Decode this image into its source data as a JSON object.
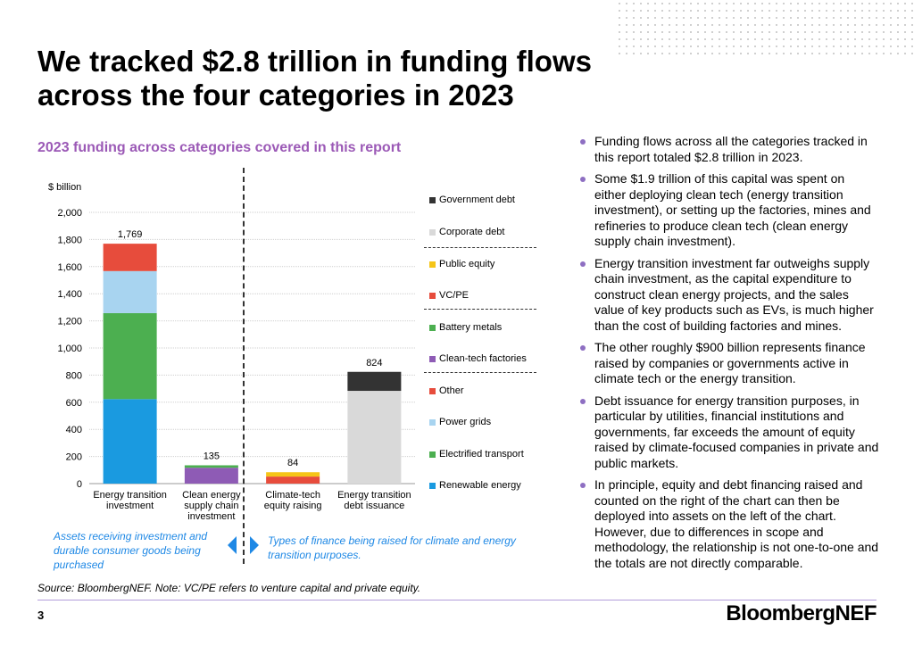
{
  "title_lines": [
    "We tracked $2.8 trillion in funding flows",
    "across the four categories in 2023"
  ],
  "colors": {
    "accent_purple": "#9b59b6",
    "note_blue": "#1e88e5",
    "government_debt": "#333333",
    "corporate_debt": "#d9d9d9",
    "public_equity": "#f5c518",
    "vc_pe": "#e74c3c",
    "battery_metals": "#4caf50",
    "clean_tech_factories": "#8e5bb5",
    "other": "#e74c3c",
    "power_grids": "#a8d4f0",
    "electrified_transport": "#4caf50",
    "renewable_energy": "#1a9ae0"
  },
  "chart_data": {
    "type": "bar",
    "stacked": true,
    "title": "2023 funding across categories covered in this report",
    "ylabel": "$ billion",
    "ylim": [
      0,
      2000
    ],
    "yticks": [
      0,
      200,
      400,
      600,
      800,
      1000,
      1200,
      1400,
      1600,
      1800,
      2000
    ],
    "grid": true,
    "categories": [
      "Energy transition investment",
      "Clean energy supply chain investment",
      "Climate-tech equity raising",
      "Energy transition debt issuance"
    ],
    "category_label_lines": [
      [
        "Energy transition",
        "investment"
      ],
      [
        "Clean energy",
        "supply chain",
        "investment"
      ],
      [
        "Climate-tech",
        "equity raising"
      ],
      [
        "Energy transition",
        "debt issuance"
      ]
    ],
    "totals": [
      1769,
      135,
      84,
      824
    ],
    "total_labels": [
      "1,769",
      "135",
      "84",
      "824"
    ],
    "series": [
      {
        "name": "Renewable energy",
        "color": "#1a9ae0",
        "values": [
          623,
          0,
          0,
          0
        ]
      },
      {
        "name": "Electrified transport",
        "color": "#4caf50",
        "values": [
          634,
          0,
          0,
          0
        ]
      },
      {
        "name": "Power grids",
        "color": "#a8d4f0",
        "values": [
          310,
          0,
          0,
          0
        ]
      },
      {
        "name": "Other",
        "color": "#e74c3c",
        "values": [
          202,
          0,
          0,
          0
        ]
      },
      {
        "name": "Clean-tech factories",
        "color": "#8e5bb5",
        "values": [
          0,
          117,
          0,
          0
        ]
      },
      {
        "name": "Battery metals",
        "color": "#4caf50",
        "values": [
          0,
          18,
          0,
          0
        ]
      },
      {
        "name": "VC/PE",
        "color": "#e74c3c",
        "values": [
          0,
          0,
          52,
          0
        ]
      },
      {
        "name": "Public equity",
        "color": "#f5c518",
        "values": [
          0,
          0,
          32,
          0
        ]
      },
      {
        "name": "Corporate debt",
        "color": "#d9d9d9",
        "values": [
          0,
          0,
          0,
          684
        ]
      },
      {
        "name": "Government debt",
        "color": "#333333",
        "values": [
          0,
          0,
          0,
          140
        ]
      }
    ],
    "legend_order": [
      "Government debt",
      "Corporate debt",
      "Public equity",
      "VC/PE",
      "Battery metals",
      "Clean-tech factories",
      "Other",
      "Power grids",
      "Electrified transport",
      "Renewable energy"
    ],
    "legend_position": "right"
  },
  "notes": {
    "left": "Assets receiving investment and durable consumer goods being purchased",
    "right": "Types of finance being raised for climate and energy transition purposes."
  },
  "bullets": [
    "Funding flows across all the categories tracked in this report totaled $2.8 trillion in 2023.",
    "Some $1.9 trillion of this capital was spent on either deploying clean tech (energy transition investment), or setting up the factories, mines and refineries to produce clean tech (clean energy supply chain investment).",
    "Energy transition investment far outweighs supply chain investment, as the capital expenditure to construct clean energy projects, and the sales value of key products such as EVs, is much higher than the cost of building factories and mines.",
    "The other roughly $900 billion represents finance raised by companies or governments active in climate tech or the energy transition.",
    "Debt issuance for energy transition purposes, in particular by utilities, financial institutions and governments, far exceeds the amount of equity raised by climate-focused companies in private and public markets.",
    "In principle, equity and debt financing raised and counted on the right of the chart can then be deployed into assets on the left of the chart. However, due to differences in scope and methodology, the relationship is not one-to-one and the totals are not directly comparable."
  ],
  "source": "Source: BloombergNEF. Note: VC/PE refers to venture capital and private equity.",
  "page_number": "3",
  "brand": "BloombergNEF"
}
